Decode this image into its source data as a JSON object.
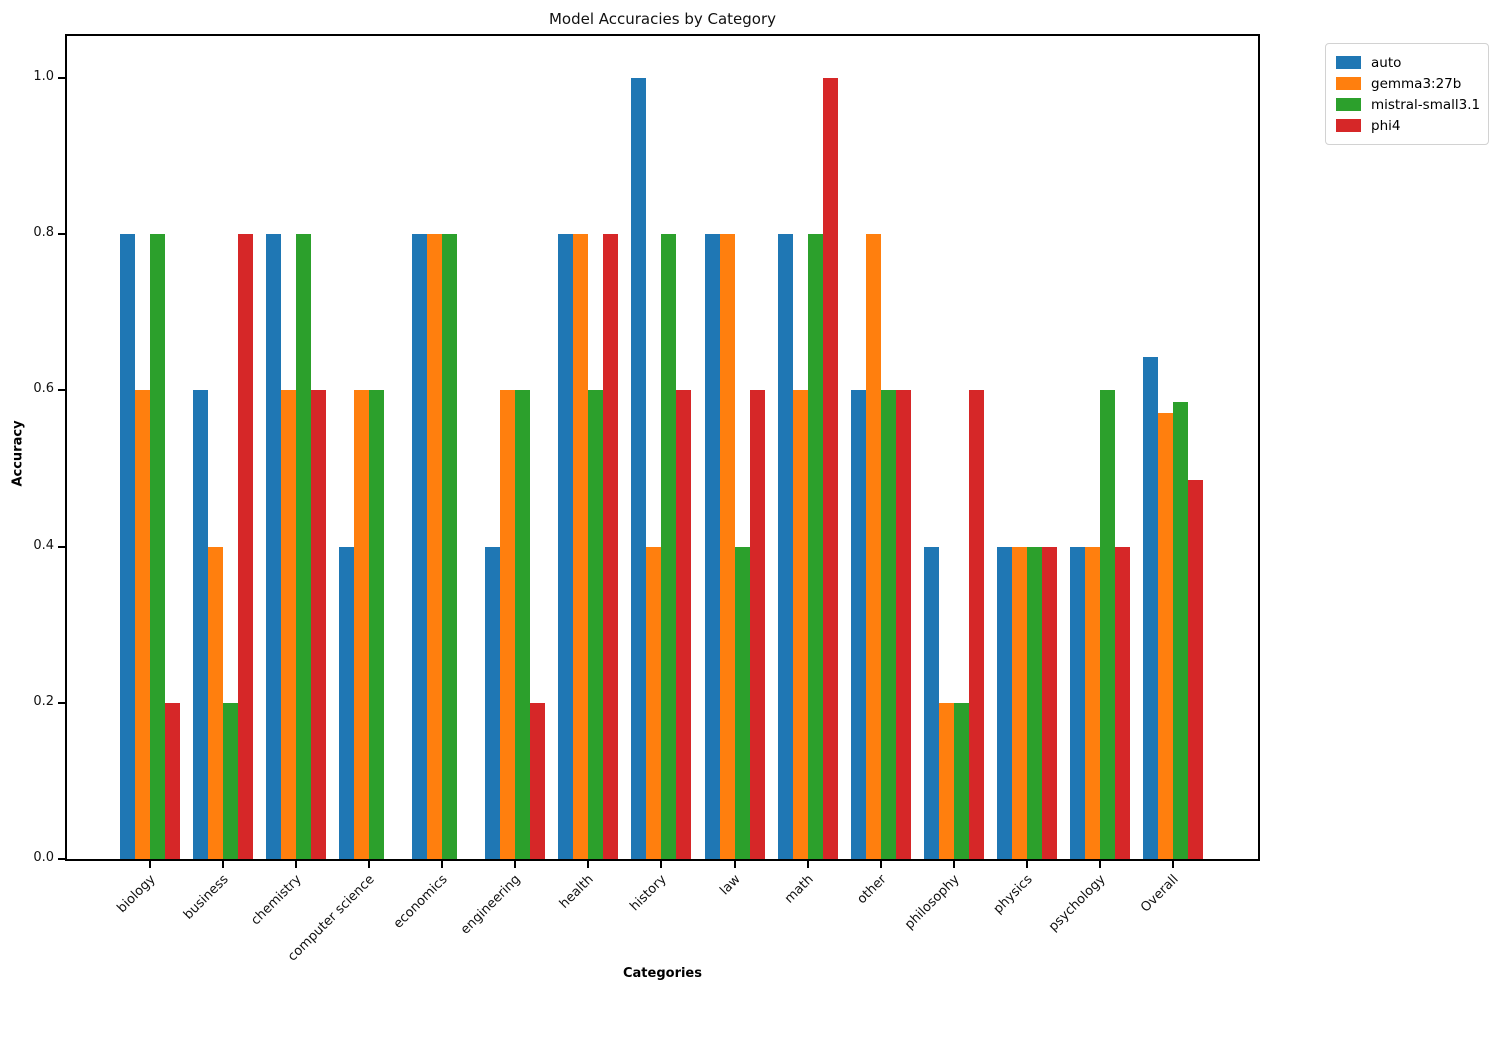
{
  "chart_data": {
    "type": "bar",
    "title": "Model Accuracies by Category",
    "xlabel": "Categories",
    "ylabel": "Accuracy",
    "categories": [
      "biology",
      "business",
      "chemistry",
      "computer science",
      "economics",
      "engineering",
      "health",
      "history",
      "law",
      "math",
      "other",
      "philosophy",
      "physics",
      "psychology",
      "Overall"
    ],
    "series": [
      {
        "name": "auto",
        "color": "#1f77b4",
        "values": [
          0.8,
          0.6,
          0.8,
          0.4,
          0.8,
          0.4,
          0.8,
          1.0,
          0.8,
          0.8,
          0.6,
          0.4,
          0.4,
          0.4,
          0.6429
        ]
      },
      {
        "name": "gemma3:27b",
        "color": "#ff7f0e",
        "values": [
          0.6,
          0.4,
          0.6,
          0.6,
          0.8,
          0.6,
          0.8,
          0.4,
          0.8,
          0.6,
          0.8,
          0.2,
          0.4,
          0.4,
          0.5714
        ]
      },
      {
        "name": "mistral-small3.1",
        "color": "#2ca02c",
        "values": [
          0.8,
          0.2,
          0.8,
          0.6,
          0.8,
          0.6,
          0.6,
          0.8,
          0.4,
          0.8,
          0.6,
          0.2,
          0.4,
          0.6,
          0.5857
        ]
      },
      {
        "name": "phi4",
        "color": "#d62728",
        "values": [
          0.2,
          0.8,
          0.6,
          0.0,
          0.0,
          0.2,
          0.8,
          0.6,
          0.6,
          1.0,
          0.6,
          0.6,
          0.4,
          0.4,
          0.4857
        ]
      }
    ],
    "y_ticks": [
      "0.0",
      "0.2",
      "0.4",
      "0.6",
      "0.8",
      "1.0"
    ],
    "ylim": [
      0,
      1.054
    ],
    "grid": false,
    "legend_position": "outside upper right"
  }
}
